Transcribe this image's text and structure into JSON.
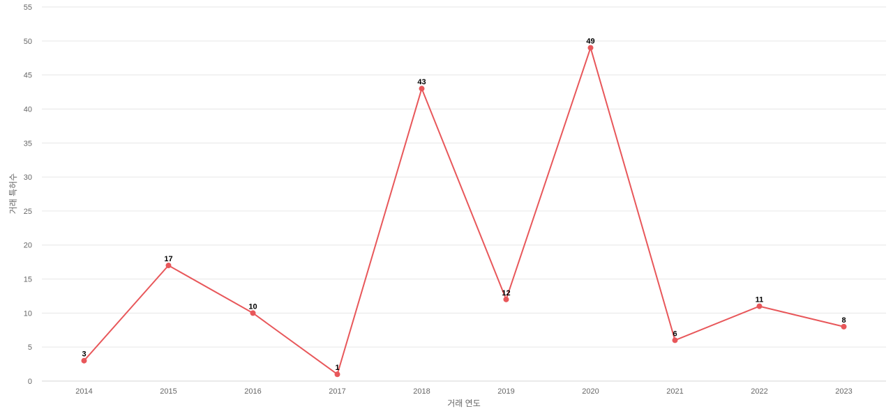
{
  "chart_data": {
    "type": "line",
    "title": "",
    "xlabel": "거래 연도",
    "ylabel": "거래 특허수",
    "categories": [
      "2014",
      "2015",
      "2016",
      "2017",
      "2018",
      "2019",
      "2020",
      "2021",
      "2022",
      "2023"
    ],
    "series": [
      {
        "values": [
          3,
          17,
          10,
          1,
          43,
          12,
          49,
          6,
          11,
          8
        ],
        "color": "#e8575a"
      }
    ],
    "ylim": [
      0,
      55
    ],
    "yticks": [
      0,
      5,
      10,
      15,
      20,
      25,
      30,
      35,
      40,
      45,
      50,
      55
    ],
    "grid": true,
    "data_labels": true,
    "legend": "none"
  }
}
